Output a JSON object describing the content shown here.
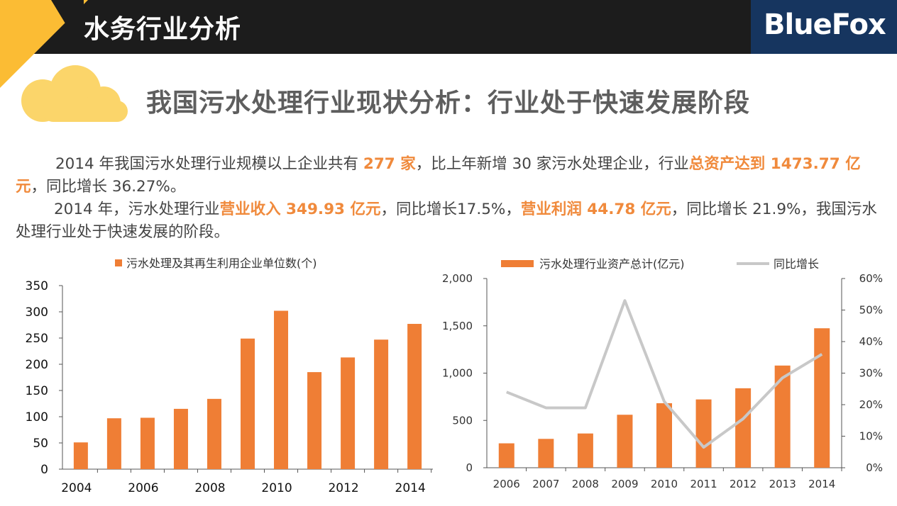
{
  "header": {
    "title": "水务行业分析",
    "brand": "BlueFox"
  },
  "main_title": "我国污水处理行业现状分析：行业处于快速发展阶段",
  "paragraph1": {
    "t1": "2014 年我国污水处理行业规模以上企业共有 ",
    "h1": "277 家",
    "t2": "，比上年新增 30 家污水处理企业，行业",
    "h2": "总资产达到 1473.77 亿元",
    "t3": "，同比增长 36.27%。"
  },
  "paragraph2": {
    "t1": "2014 年，污水处理行业",
    "h1": "营业收入 349.93 亿元",
    "t2": "，同比增长17.5%，",
    "h2": "营业利润 44.78 亿元",
    "t3": "，同比增长 21.9%，我国污水处理行业处于快速发展的阶段。"
  },
  "colors": {
    "bar": "#ef7e35",
    "line": "#c8c8c8",
    "accent": "#f08a3c",
    "header_bg": "#1c1c1c",
    "brand_bg": "#16355f",
    "corner": "#fbbc34"
  },
  "chart_data": [
    {
      "type": "bar",
      "legend": "污水处理及其再生利用企业单位数(个)",
      "categories": [
        "2004",
        "2005",
        "2006",
        "2007",
        "2008",
        "2009",
        "2010",
        "2011",
        "2012",
        "2013",
        "2014"
      ],
      "x_tick_labels": [
        "2004",
        "2006",
        "2008",
        "2010",
        "2012",
        "2014"
      ],
      "values": [
        51,
        97,
        98,
        115,
        134,
        249,
        302,
        185,
        213,
        247,
        277
      ],
      "ylim": [
        0,
        350
      ],
      "y_ticks": [
        "0",
        "50",
        "100",
        "150",
        "200",
        "250",
        "300",
        "350"
      ]
    },
    {
      "type": "bar+line",
      "categories": [
        "2006",
        "2007",
        "2008",
        "2009",
        "2010",
        "2011",
        "2012",
        "2013",
        "2014"
      ],
      "series": [
        {
          "name": "污水处理行业资产总计(亿元)",
          "type": "bar",
          "axis": "left",
          "values": [
            258,
            305,
            362,
            560,
            682,
            722,
            840,
            1080,
            1474
          ]
        },
        {
          "name": "同比增长",
          "type": "line",
          "axis": "right",
          "values": [
            0.24,
            0.19,
            0.19,
            0.53,
            0.21,
            0.065,
            0.155,
            0.285,
            0.36
          ]
        }
      ],
      "ylim_left": [
        0,
        2000
      ],
      "ylim_right": [
        0,
        0.6
      ],
      "y_ticks_left": [
        "0",
        "500",
        "1,000",
        "1,500",
        "2,000"
      ],
      "y_ticks_right": [
        "0%",
        "10%",
        "20%",
        "30%",
        "40%",
        "50%",
        "60%"
      ]
    }
  ]
}
